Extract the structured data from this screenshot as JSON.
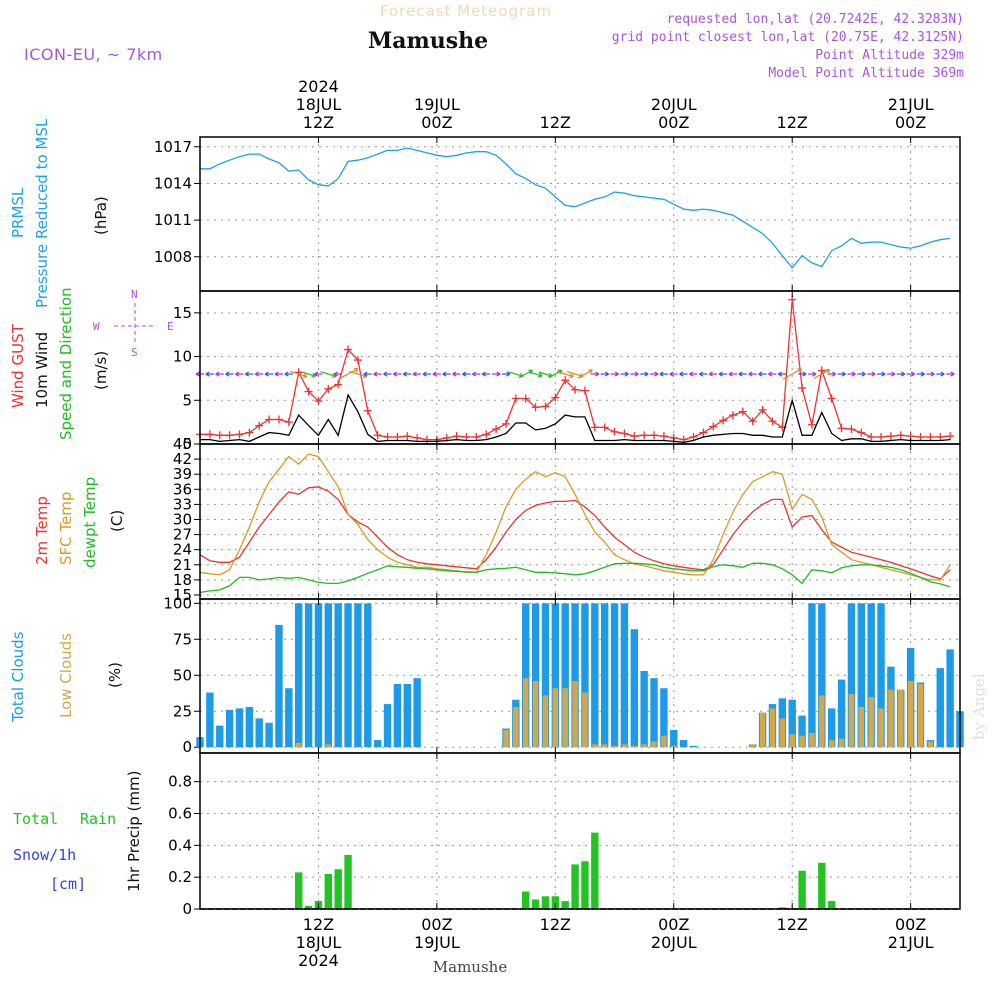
{
  "header": {
    "title_faded": "Forecast Meteogram",
    "location": "Mamushe",
    "model": "ICON-EU, ~ 7km",
    "requested": "requested lon,lat (20.7242E, 42.3283N)",
    "grid_point": "grid point closest lon,lat (20.75E, 42.3125N)",
    "point_altitude": "Point Altitude 329m",
    "model_altitude": "Model Point Altitude 369m",
    "footer_location": "Mamushe",
    "watermark": "by Angel"
  },
  "time_axis": {
    "year_label": "2024",
    "ticks": [
      {
        "x": 12,
        "top_day": "18JUL",
        "hour": "12Z"
      },
      {
        "x": 24,
        "top_day": "19JUL",
        "hour": "00Z"
      },
      {
        "x": 36,
        "top_day": "",
        "hour": "12Z"
      },
      {
        "x": 48,
        "top_day": "20JUL",
        "hour": "00Z"
      },
      {
        "x": 60,
        "top_day": "",
        "hour": "12Z"
      },
      {
        "x": 72,
        "top_day": "21JUL",
        "hour": "00Z"
      }
    ]
  },
  "colors": {
    "pressure": "#1aa3e8",
    "gust": "#ee3333",
    "wind": "#000000",
    "direction": "#22bb22",
    "purple": "#aa55dd",
    "temp2m": "#ee3333",
    "sfc": "#dd9922",
    "dewpt": "#22bb22",
    "total_clouds": "#1e9be8",
    "low_clouds": "#d4a84a",
    "rain": "#22c422",
    "snow": "#3344dd"
  },
  "chart_data": [
    {
      "type": "line",
      "panel": "pressure",
      "ylabels": [
        "PRMSL",
        "Pressure Reduced to MSL",
        "(hPa)"
      ],
      "yticks": [
        1008,
        1011,
        1014,
        1017
      ],
      "ylim": [
        1005.2,
        1017.8
      ],
      "xlim": [
        0,
        77
      ],
      "series": [
        {
          "values": [
            1015.2,
            1015.2,
            1015.6,
            1015.9,
            1016.2,
            1016.4,
            1016.4,
            1016.0,
            1015.7,
            1015.0,
            1015.1,
            1014.3,
            1013.9,
            1013.8,
            1014.4,
            1015.8,
            1015.9,
            1016.1,
            1016.4,
            1016.7,
            1016.7,
            1016.9,
            1016.7,
            1016.5,
            1016.3,
            1016.2,
            1016.3,
            1016.5,
            1016.6,
            1016.6,
            1016.3,
            1015.6,
            1014.8,
            1014.4,
            1013.9,
            1013.6,
            1012.9,
            1012.2,
            1012.1,
            1012.4,
            1012.7,
            1012.9,
            1013.3,
            1013.2,
            1013.0,
            1012.9,
            1012.8,
            1012.7,
            1012.3,
            1011.9,
            1011.8,
            1011.9,
            1011.8,
            1011.6,
            1011.4,
            1010.9,
            1010.4,
            1009.9,
            1009.1,
            1008.1,
            1007.1,
            1008.1,
            1007.5,
            1007.2,
            1008.5,
            1008.9,
            1009.5,
            1009.1,
            1009.2,
            1009.2,
            1009.0,
            1008.8,
            1008.7,
            1008.9,
            1009.2,
            1009.4,
            1009.5
          ]
        }
      ]
    },
    {
      "type": "line",
      "panel": "wind",
      "ylabels": [
        "Wind GUST",
        "10m Wind",
        "Speed and Direction",
        "(m/s)"
      ],
      "compass": {
        "n": "N",
        "s": "S",
        "w": "W",
        "e": "E"
      },
      "yticks": [
        0,
        5,
        10,
        15
      ],
      "ylim": [
        0,
        17.5
      ],
      "xlim": [
        0,
        77
      ],
      "series": [
        {
          "name": "Wind GUST",
          "values": [
            1.1,
            1.1,
            1.0,
            1.0,
            1.1,
            1.3,
            2.1,
            2.8,
            2.8,
            2.5,
            8.2,
            6.0,
            4.9,
            6.3,
            6.8,
            10.8,
            9.6,
            3.8,
            1.0,
            0.8,
            0.8,
            0.9,
            0.7,
            0.5,
            0.5,
            0.7,
            0.9,
            0.8,
            0.8,
            1.1,
            1.7,
            2.3,
            5.2,
            5.2,
            4.2,
            4.3,
            5.3,
            7.3,
            6.2,
            6.1,
            1.9,
            1.9,
            1.4,
            1.2,
            0.9,
            1.0,
            1.0,
            0.9,
            0.7,
            0.5,
            0.8,
            1.3,
            2.0,
            2.7,
            3.3,
            3.7,
            2.6,
            3.9,
            2.6,
            1.9,
            16.5,
            6.4,
            2.2,
            8.4,
            5.2,
            1.8,
            1.7,
            1.3,
            0.8,
            0.8,
            0.9,
            1.0,
            0.9,
            0.8,
            0.8,
            0.8,
            0.9
          ]
        },
        {
          "name": "10m Wind",
          "values": [
            0.5,
            0.5,
            0.3,
            0.4,
            0.5,
            0.3,
            0.8,
            1.3,
            1.2,
            1.0,
            3.3,
            2.1,
            1.0,
            2.8,
            1.0,
            5.6,
            3.7,
            1.1,
            0.3,
            0.4,
            0.4,
            0.4,
            0.3,
            0.3,
            0.3,
            0.4,
            0.5,
            0.4,
            0.4,
            0.5,
            0.8,
            1.2,
            2.4,
            2.4,
            1.6,
            1.8,
            2.3,
            3.3,
            3.1,
            3.1,
            0.4,
            0.4,
            0.4,
            0.5,
            0.4,
            0.4,
            0.4,
            0.4,
            0.3,
            0.2,
            0.4,
            0.8,
            1.0,
            1.1,
            1.2,
            1.2,
            1.0,
            1.0,
            0.8,
            0.8,
            5.0,
            1.0,
            1.0,
            3.6,
            1.2,
            0.4,
            0.6,
            0.6,
            0.3,
            0.3,
            0.4,
            0.5,
            0.4,
            0.4,
            0.4,
            0.4,
            0.5
          ]
        }
      ]
    },
    {
      "type": "line",
      "panel": "temperature",
      "ylabels": [
        "2m Temp",
        "SFC Temp",
        "dewpt Temp",
        "(C)"
      ],
      "yticks": [
        15,
        18,
        21,
        24,
        27,
        30,
        33,
        36,
        39,
        42,
        45
      ],
      "ylim": [
        14.2,
        45
      ],
      "xlim": [
        0,
        77
      ],
      "series": [
        {
          "name": "2m Temp",
          "values": [
            23.0,
            21.8,
            21.5,
            21.5,
            22.5,
            25.5,
            28.5,
            31.0,
            33.5,
            35.5,
            35.0,
            36.3,
            36.5,
            35.6,
            34.0,
            31.0,
            29.5,
            28.5,
            26.5,
            24.5,
            23.0,
            22.0,
            21.5,
            21.2,
            21.0,
            20.8,
            20.6,
            20.4,
            20.2,
            22.0,
            24.5,
            27.5,
            30.0,
            31.8,
            32.8,
            33.3,
            33.6,
            33.6,
            33.8,
            32.5,
            30.8,
            28.5,
            26.5,
            25.0,
            23.5,
            22.5,
            21.8,
            21.2,
            20.8,
            20.5,
            20.2,
            20.0,
            21.0,
            24.0,
            27.0,
            29.5,
            31.5,
            33.0,
            34.0,
            34.0,
            28.5,
            30.5,
            30.8,
            28.0,
            25.5,
            24.5,
            23.5,
            23.0,
            22.5,
            22.0,
            21.5,
            20.8,
            20.2,
            19.5,
            18.8,
            18.2,
            20.0
          ]
        },
        {
          "name": "SFC Temp",
          "values": [
            19.5,
            19.2,
            19.0,
            20.0,
            24.0,
            28.5,
            33.5,
            37.5,
            40.0,
            42.5,
            41.0,
            43.0,
            42.5,
            39.5,
            36.5,
            31.0,
            29.0,
            26.0,
            24.0,
            22.5,
            21.5,
            21.0,
            20.5,
            20.5,
            20.2,
            20.0,
            19.8,
            19.5,
            19.5,
            23.0,
            27.5,
            32.5,
            36.0,
            38.0,
            39.5,
            38.5,
            39.3,
            38.5,
            35.0,
            31.0,
            27.5,
            25.5,
            23.0,
            22.0,
            21.2,
            20.8,
            20.3,
            19.8,
            19.5,
            19.2,
            19.0,
            19.0,
            22.0,
            27.0,
            31.5,
            35.0,
            37.5,
            38.5,
            39.5,
            39.0,
            32.0,
            35.0,
            34.0,
            30.5,
            25.0,
            23.5,
            22.0,
            21.5,
            21.0,
            20.5,
            20.0,
            19.5,
            19.0,
            18.5,
            18.0,
            18.0,
            21.0
          ]
        },
        {
          "name": "dewpt Temp",
          "values": [
            15.5,
            15.8,
            16.0,
            16.8,
            18.5,
            18.5,
            18.0,
            18.2,
            18.5,
            18.3,
            18.5,
            18.0,
            17.5,
            17.3,
            17.3,
            17.8,
            18.5,
            19.3,
            20.0,
            20.8,
            20.6,
            20.5,
            20.3,
            20.2,
            20.0,
            19.8,
            19.7,
            19.6,
            19.5,
            20.0,
            20.2,
            20.3,
            20.5,
            20.0,
            19.5,
            19.5,
            19.4,
            19.2,
            19.0,
            19.2,
            19.8,
            20.5,
            21.2,
            21.3,
            21.3,
            21.2,
            21.0,
            20.5,
            20.2,
            20.0,
            19.8,
            19.8,
            20.6,
            21.0,
            20.8,
            20.5,
            21.3,
            21.3,
            21.0,
            20.2,
            19.0,
            17.3,
            20.0,
            19.8,
            19.4,
            20.4,
            20.8,
            21.0,
            21.0,
            20.8,
            20.5,
            20.0,
            19.3,
            18.5,
            17.6,
            17.2,
            16.6
          ]
        }
      ]
    },
    {
      "type": "bar",
      "panel": "clouds",
      "ylabels": [
        "Total Clouds",
        "Low Clouds",
        "(%)"
      ],
      "yticks": [
        0,
        25,
        50,
        75,
        100
      ],
      "ylim": [
        -4,
        103
      ],
      "xlim": [
        0,
        77
      ],
      "series": [
        {
          "name": "Total Clouds",
          "values": [
            7,
            38,
            15,
            26,
            27,
            28,
            20,
            17,
            85,
            41,
            100,
            100,
            100,
            100,
            100,
            100,
            100,
            100,
            5,
            30,
            44,
            44,
            48,
            0,
            0,
            0,
            0,
            0,
            0,
            0,
            0,
            13,
            33,
            100,
            100,
            100,
            100,
            100,
            100,
            100,
            100,
            100,
            100,
            100,
            82,
            53,
            48,
            41,
            12,
            5,
            1,
            0,
            0,
            0,
            0,
            0,
            2,
            24,
            30,
            34,
            33,
            22,
            100,
            100,
            27,
            47,
            100,
            100,
            100,
            100,
            56,
            40,
            69,
            45,
            5,
            55,
            68,
            25
          ]
        },
        {
          "name": "Low Clouds",
          "values": [
            0,
            0,
            0,
            0,
            0,
            0,
            0,
            0,
            0,
            0,
            3,
            0,
            0,
            2,
            0,
            0,
            0,
            0,
            0,
            0,
            0,
            0,
            0,
            0,
            0,
            0,
            0,
            0,
            0,
            0,
            0,
            12,
            28,
            48,
            46,
            36,
            41,
            41,
            46,
            38,
            2,
            2,
            1,
            2,
            1,
            2,
            4,
            8,
            1,
            0,
            0,
            0,
            0,
            0,
            0,
            0,
            2,
            24,
            27,
            20,
            9,
            8,
            10,
            36,
            5,
            6,
            37,
            28,
            35,
            27,
            40,
            40,
            46,
            44,
            4,
            0,
            0,
            0
          ]
        }
      ]
    },
    {
      "type": "bar",
      "panel": "precip",
      "ylabels": [
        "Total",
        "Rain",
        "Snow/1h",
        "[cm]",
        "1hr Precip (mm)"
      ],
      "yticks": [
        0,
        0.2,
        0.4,
        0.6,
        0.8
      ],
      "ytick_labels": [
        "0",
        "0.2",
        "0.4",
        "0.6",
        "0.8"
      ],
      "ylim": [
        0,
        0.98
      ],
      "xlim": [
        0,
        77
      ],
      "series": [
        {
          "name": "Total Rain",
          "values": [
            0,
            0,
            0,
            0,
            0,
            0,
            0,
            0,
            0,
            0,
            0.23,
            0.02,
            0.05,
            0.22,
            0.25,
            0.34,
            0,
            0,
            0,
            0,
            0,
            0,
            0,
            0,
            0,
            0,
            0,
            0,
            0,
            0,
            0,
            0,
            0,
            0.11,
            0.06,
            0.08,
            0.08,
            0.05,
            0.28,
            0.3,
            0.48,
            0,
            0,
            0,
            0,
            0,
            0,
            0,
            0,
            0,
            0,
            0,
            0,
            0,
            0,
            0,
            0,
            0,
            0,
            0.01,
            0,
            0.24,
            0,
            0.29,
            0.05,
            0,
            0,
            0,
            0,
            0,
            0,
            0,
            0,
            0,
            0,
            0,
            0
          ]
        }
      ]
    }
  ]
}
